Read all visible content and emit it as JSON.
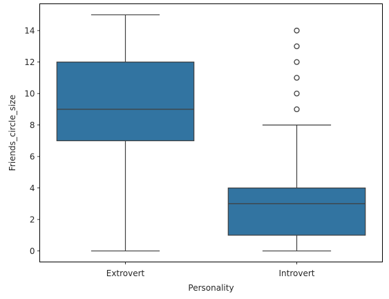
{
  "chart_data": {
    "type": "box",
    "title": "",
    "xlabel": "Personality",
    "ylabel": "Friends_circle_size",
    "ylim": [
      -0.7,
      15.7
    ],
    "yticks": [
      0,
      2,
      4,
      6,
      8,
      10,
      12,
      14
    ],
    "categories": [
      "Extrovert",
      "Introvert"
    ],
    "boxes": [
      {
        "category": "Extrovert",
        "whisker_low": 0,
        "q1": 7,
        "median": 9,
        "q3": 12,
        "whisker_high": 15,
        "outliers": []
      },
      {
        "category": "Introvert",
        "whisker_low": 0,
        "q1": 1,
        "median": 3,
        "q3": 4,
        "whisker_high": 8,
        "outliers": [
          9,
          10,
          11,
          12,
          13,
          14
        ]
      }
    ],
    "grid": false,
    "colors": {
      "box_fill": "#3274a1",
      "line": "#3f3f3f",
      "axis": "#000000"
    }
  }
}
